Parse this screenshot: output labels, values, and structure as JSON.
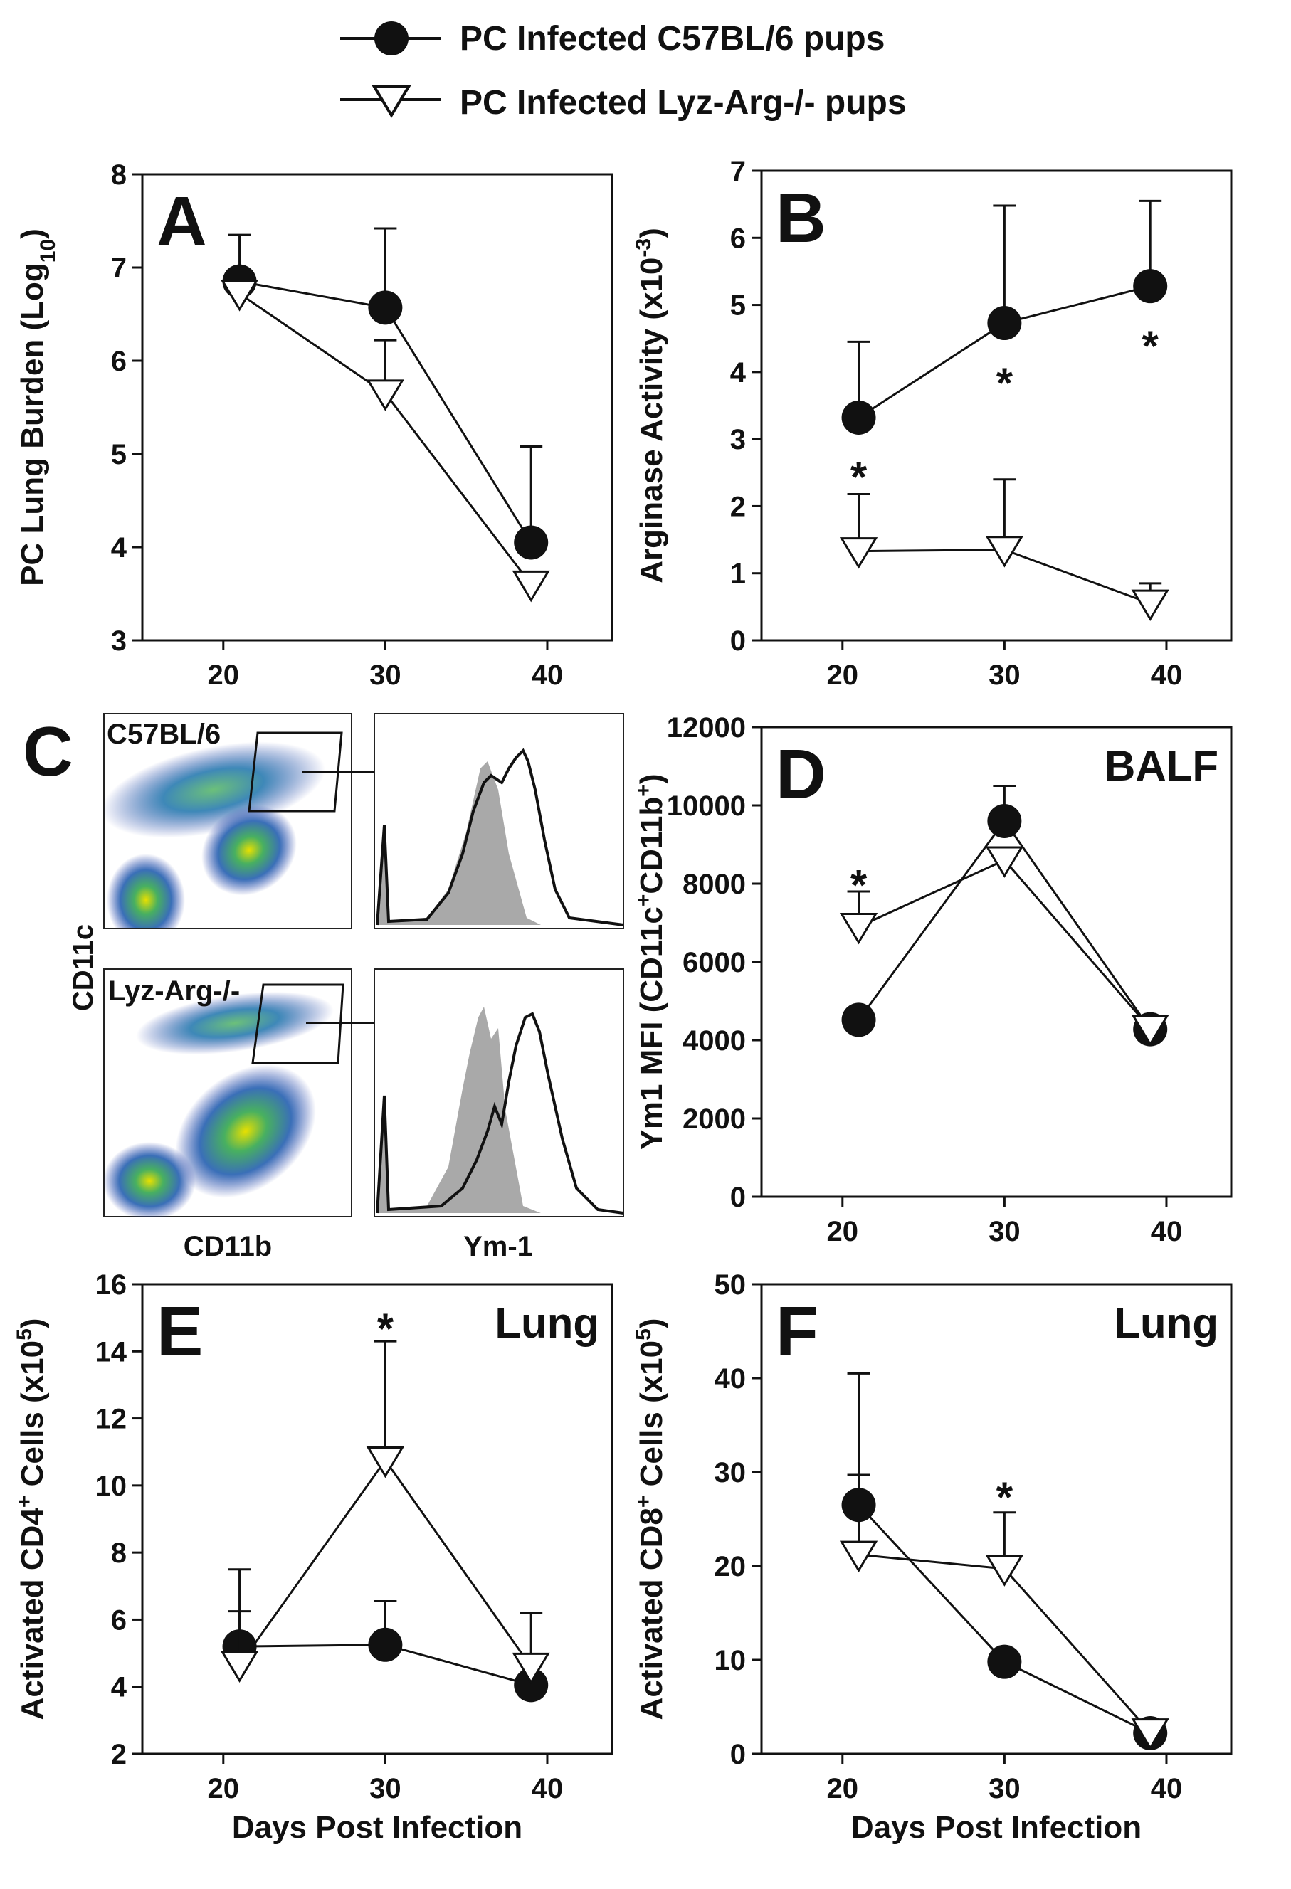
{
  "legend": {
    "items": [
      {
        "label": "PC Infected C57BL/6 pups",
        "marker": "filled-circle"
      },
      {
        "label": "PC Infected Lyz-Arg-/- pups",
        "marker": "open-triangle-down"
      }
    ]
  },
  "flow_panel": {
    "letter": "C",
    "top_label": "C57BL/6",
    "bottom_label": "Lyz-Arg-/-",
    "ylabel": "CD11c",
    "xlabel_dot": "CD11b",
    "xlabel_hist": "Ym-1"
  },
  "chart_data": [
    {
      "id": "A",
      "type": "line",
      "letter": "A",
      "corner_label": "",
      "ylabel": "PC Lung Burden (Log10)",
      "xlabel": "",
      "xlim": [
        15,
        44
      ],
      "ylim": [
        3,
        8
      ],
      "xticks": [
        20,
        30,
        40
      ],
      "yticks": [
        3,
        4,
        5,
        6,
        7,
        8
      ],
      "series": [
        {
          "name": "PC Infected C57BL/6 pups",
          "x": [
            21,
            30,
            39
          ],
          "y": [
            6.85,
            6.57,
            4.05
          ],
          "err": [
            0.5,
            0.85,
            1.03
          ]
        },
        {
          "name": "PC Infected Lyz-Arg-/- pups",
          "x": [
            21,
            30,
            39
          ],
          "y": [
            6.72,
            5.65,
            3.6
          ],
          "err": [
            0,
            0.57,
            0
          ]
        }
      ],
      "stars": []
    },
    {
      "id": "B",
      "type": "line",
      "letter": "B",
      "corner_label": "",
      "ylabel": "Arginase Activity (x10-3)",
      "xlabel": "",
      "xlim": [
        15,
        44
      ],
      "ylim": [
        0,
        7
      ],
      "xticks": [
        20,
        30,
        40
      ],
      "yticks": [
        0,
        1,
        2,
        3,
        4,
        5,
        6,
        7
      ],
      "series": [
        {
          "name": "PC Infected C57BL/6 pups",
          "x": [
            21,
            30,
            39
          ],
          "y": [
            3.32,
            4.73,
            5.28
          ],
          "err": [
            1.13,
            1.75,
            1.27
          ]
        },
        {
          "name": "PC Infected Lyz-Arg-/- pups",
          "x": [
            21,
            30,
            39
          ],
          "y": [
            1.33,
            1.35,
            0.55
          ],
          "err": [
            0.85,
            1.05,
            0.3
          ]
        }
      ],
      "stars": [
        {
          "x": 21,
          "y": 2.6
        },
        {
          "x": 30,
          "y": 4.0
        },
        {
          "x": 39,
          "y": 4.55
        }
      ]
    },
    {
      "id": "D",
      "type": "line",
      "letter": "D",
      "corner_label": "BALF",
      "ylabel": "Ym1 MFI (CD11c+CD11b+)",
      "xlabel": "",
      "xlim": [
        15,
        44
      ],
      "ylim": [
        0,
        12000
      ],
      "xticks": [
        20,
        30,
        40
      ],
      "yticks": [
        0,
        2000,
        4000,
        6000,
        8000,
        10000,
        12000
      ],
      "series": [
        {
          "name": "PC Infected C57BL/6 pups",
          "x": [
            21,
            30,
            39
          ],
          "y": [
            4520,
            9600,
            4280
          ],
          "err": [
            0,
            900,
            0
          ]
        },
        {
          "name": "PC Infected Lyz-Arg-/- pups",
          "x": [
            21,
            30,
            39
          ],
          "y": [
            6900,
            8600,
            4300
          ],
          "err": [
            900,
            0,
            0
          ]
        }
      ],
      "stars": [
        {
          "x": 21,
          "y": 8250
        }
      ]
    },
    {
      "id": "E",
      "type": "line",
      "letter": "E",
      "corner_label": "Lung",
      "ylabel": "Activated CD4+ Cells (x10^5)",
      "xlabel": "Days Post Infection",
      "xlim": [
        15,
        44
      ],
      "ylim": [
        2,
        16
      ],
      "xticks": [
        20,
        30,
        40
      ],
      "yticks": [
        2,
        4,
        6,
        8,
        10,
        12,
        14,
        16
      ],
      "series": [
        {
          "name": "PC Infected C57BL/6 pups",
          "x": [
            21,
            30,
            39
          ],
          "y": [
            5.2,
            5.25,
            4.05
          ],
          "err": [
            1.05,
            1.3,
            0
          ]
        },
        {
          "name": "PC Infected Lyz-Arg-/- pups",
          "x": [
            21,
            30,
            39
          ],
          "y": [
            4.65,
            10.75,
            4.6
          ],
          "err": [
            2.85,
            3.55,
            1.6
          ]
        }
      ],
      "stars": [
        {
          "x": 30,
          "y": 15.0
        }
      ]
    },
    {
      "id": "F",
      "type": "line",
      "letter": "F",
      "corner_label": "Lung",
      "ylabel": "Activated CD8+ Cells (x10^5)",
      "xlabel": "Days Post Infection",
      "xlim": [
        15,
        44
      ],
      "ylim": [
        0,
        50
      ],
      "xticks": [
        20,
        30,
        40
      ],
      "yticks": [
        0,
        10,
        20,
        30,
        40,
        50
      ],
      "series": [
        {
          "name": "PC Infected C57BL/6 pups",
          "x": [
            21,
            30,
            39
          ],
          "y": [
            26.5,
            9.8,
            2.2
          ],
          "err": [
            3.2,
            0,
            0
          ]
        },
        {
          "name": "PC Infected Lyz-Arg-/- pups",
          "x": [
            21,
            30,
            39
          ],
          "y": [
            21.2,
            19.7,
            2.3
          ],
          "err": [
            19.3,
            6.0,
            1.2
          ]
        }
      ],
      "stars": [
        {
          "x": 30,
          "y": 28.5
        }
      ]
    }
  ]
}
